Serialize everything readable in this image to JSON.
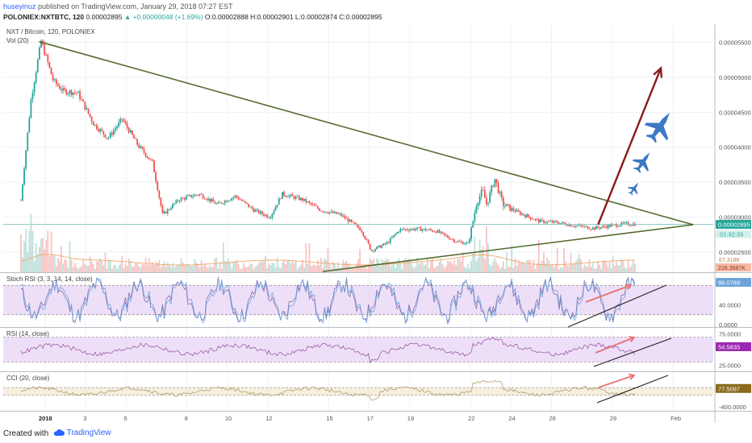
{
  "header": {
    "user": "huseyinuz",
    "published": "published on TradingView.com, January 29, 2018 07:27 EST",
    "symbol": "POLONIEX:NXTBTC, 120",
    "price": "0.00002895",
    "change": "▲ +0.00000048 (+1.69%)",
    "ohlc": "O:0.00002888 H:0.00002901 L:0.00002874 C:0.00002895"
  },
  "footer": {
    "created": "Created with",
    "brand": "TradingView"
  },
  "colors": {
    "up": "#26a69a",
    "down": "#ef5350",
    "trend": "#556b2f",
    "arrow": "#8b1a1a",
    "jet": "#3d78c4",
    "rsi_fill": "#e8d4f5",
    "cci_fill": "#f3ead3",
    "grid": "#eef1f4"
  },
  "chart_data": [
    {
      "type": "candlestick",
      "title": "NXT / Bitcoin, 120, POLONIEX",
      "indicator_label": "Vol (20)",
      "ylim": [
        2.21e-05,
        5.76e-05
      ],
      "x_ticks": [
        "2018",
        "3",
        "5",
        "8",
        "10",
        "12",
        "15",
        "17",
        "19",
        "22",
        "24",
        "26",
        "29",
        "Feb"
      ],
      "y_ticks": [
        2.5e-05,
        3e-05,
        3.5e-05,
        4e-05,
        4.5e-05,
        5e-05,
        5.5e-05
      ],
      "y_tick_labels": [
        "0.00002500",
        "0.00003000",
        "0.00003500",
        "0.00004000",
        "0.00004500",
        "0.00005000",
        "0.00005500"
      ],
      "last_price_label": "0.00002895",
      "countdown_label": "01:32:33",
      "volume_label": "216.3687K",
      "volume_ma_label": "67.318K",
      "anchors": [
        {
          "day": -1.2,
          "price": 3.24e-05
        },
        {
          "day": -0.7,
          "price": 4.68e-05
        },
        {
          "day": -0.2,
          "price": 5.52e-05
        },
        {
          "day": 0.4,
          "price": 4.95e-05
        },
        {
          "day": 0.9,
          "price": 4.8e-05
        },
        {
          "day": 1.6,
          "price": 4.78e-05
        },
        {
          "day": 2.4,
          "price": 4.33e-05
        },
        {
          "day": 3.1,
          "price": 4.13e-05
        },
        {
          "day": 3.8,
          "price": 4.4e-05
        },
        {
          "day": 4.6,
          "price": 4.02e-05
        },
        {
          "day": 5.3,
          "price": 3.78e-05
        },
        {
          "day": 5.8,
          "price": 3.03e-05
        },
        {
          "day": 6.6,
          "price": 3.25e-05
        },
        {
          "day": 7.6,
          "price": 3.33e-05
        },
        {
          "day": 8.5,
          "price": 3.18e-05
        },
        {
          "day": 9.4,
          "price": 3.3e-05
        },
        {
          "day": 10.3,
          "price": 3.1e-05
        },
        {
          "day": 11.1,
          "price": 3e-05
        },
        {
          "day": 11.7,
          "price": 3.33e-05
        },
        {
          "day": 12.7,
          "price": 3.25e-05
        },
        {
          "day": 13.6,
          "price": 3.1e-05
        },
        {
          "day": 14.6,
          "price": 3.03e-05
        },
        {
          "day": 15.6,
          "price": 2.82e-05
        },
        {
          "day": 16.1,
          "price": 2.52e-05
        },
        {
          "day": 16.9,
          "price": 2.63e-05
        },
        {
          "day": 17.5,
          "price": 2.82e-05
        },
        {
          "day": 18.4,
          "price": 2.83e-05
        },
        {
          "day": 19.3,
          "price": 2.8e-05
        },
        {
          "day": 20.3,
          "price": 2.65e-05
        },
        {
          "day": 20.9,
          "price": 2.62e-05
        },
        {
          "day": 21.3,
          "price": 3.2e-05
        },
        {
          "day": 21.6,
          "price": 3.38e-05
        },
        {
          "day": 21.8,
          "price": 3.18e-05
        },
        {
          "day": 22.2,
          "price": 3.55e-05
        },
        {
          "day": 22.6,
          "price": 3.18e-05
        },
        {
          "day": 23.4,
          "price": 3.06e-05
        },
        {
          "day": 24.4,
          "price": 2.94e-05
        },
        {
          "day": 25.3,
          "price": 2.92e-05
        },
        {
          "day": 26.1,
          "price": 2.88e-05
        },
        {
          "day": 27.1,
          "price": 2.84e-05
        },
        {
          "day": 28.0,
          "price": 2.88e-05
        },
        {
          "day": 28.6,
          "price": 2.9e-05
        },
        {
          "day": 29.2,
          "price": 2.9e-05
        }
      ],
      "upper_trendline": [
        {
          "day": -0.3,
          "price": 5.51e-05
        },
        {
          "day": 32.0,
          "price": 2.89e-05
        }
      ],
      "lower_trendline": [
        {
          "day": 13.7,
          "price": 2.22e-05
        },
        {
          "day": 32.0,
          "price": 2.89e-05
        }
      ],
      "projection_arrow": [
        {
          "day": 27.3,
          "price": 2.89e-05
        },
        {
          "day": 30.4,
          "price": 5.13e-05
        }
      ]
    },
    {
      "type": "line",
      "title": "Stoch RSI (3, 3, 14, 14, close)",
      "ylim": [
        -5,
        105
      ],
      "band": [
        20,
        80
      ],
      "y_tick_labels": [
        "40.0000",
        "0.0000"
      ],
      "y_ticks": [
        40,
        0
      ],
      "last_value_label": "86.0769",
      "annotation": "up-trend"
    },
    {
      "type": "line",
      "title": "RSI (14, close)",
      "ylim": [
        15,
        85
      ],
      "band": [
        30,
        70
      ],
      "y_tick_labels": [
        "75.0000",
        "25.0000"
      ],
      "y_ticks": [
        75,
        25
      ],
      "last_value_label": "54.5835"
    },
    {
      "type": "line",
      "title": "CCI (20, close)",
      "ylim": [
        -500,
        500
      ],
      "band": [
        -100,
        100
      ],
      "y_tick_labels": [
        "-400.0000"
      ],
      "y_ticks": [
        -400
      ],
      "last_value_label": "77.5097"
    }
  ]
}
